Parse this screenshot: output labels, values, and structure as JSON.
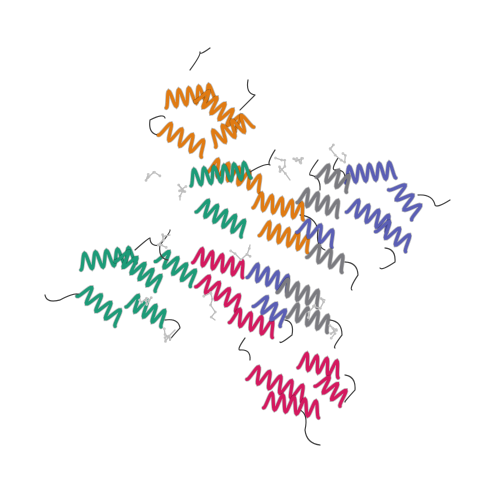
{
  "scene": {
    "description_free": true,
    "background": "#ffffff",
    "chains": [
      {
        "name": "chain-orange",
        "color": "#e07b13"
      },
      {
        "name": "chain-teal",
        "color": "#1d9b78"
      },
      {
        "name": "chain-magenta",
        "color": "#d4195f"
      },
      {
        "name": "chain-slate-blue",
        "color": "#5b5fb5"
      },
      {
        "name": "chain-gray",
        "color": "#7b7b80"
      }
    ],
    "ligand_color": "#bdbdbd"
  }
}
